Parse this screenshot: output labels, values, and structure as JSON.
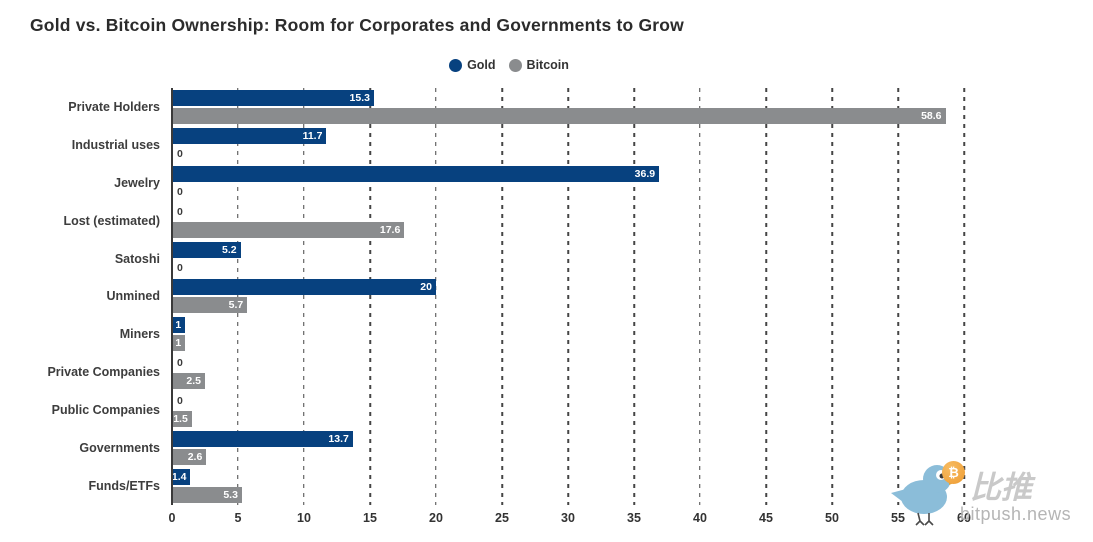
{
  "title": "Gold vs. Bitcoin Ownership: Room for Corporates and Governments to Grow",
  "legend": {
    "items": [
      {
        "label": "Gold",
        "color": "#07417f"
      },
      {
        "label": "Bitcoin",
        "color": "#8a8c8e"
      }
    ]
  },
  "watermark": {
    "brand_cn": "比推",
    "brand_site": "bitpush.news",
    "coin_symbol": "₿"
  },
  "colors": {
    "gold_bar": "#07417f",
    "bitcoin_bar": "#8a8c8e",
    "grid": "#454545",
    "axis": "#3a3a3a",
    "text": "#3d3d3d",
    "inside_label": "#ffffff"
  },
  "chart_data": {
    "type": "bar",
    "orientation": "horizontal",
    "title": "Gold vs. Bitcoin Ownership: Room for Corporates and Governments to Grow",
    "categories": [
      "Private Holders",
      "Industrial uses",
      "Jewelry",
      "Lost (estimated)",
      "Satoshi",
      "Unmined",
      "Miners",
      "Private Companies",
      "Public Companies",
      "Governments",
      "Funds/ETFs"
    ],
    "series": [
      {
        "name": "Gold",
        "color": "#07417f",
        "values": [
          15.3,
          11.7,
          36.9,
          0,
          5.2,
          20,
          1,
          0,
          0,
          13.7,
          1.4
        ],
        "labels": [
          "15.3",
          "11.7",
          "36.9",
          "0",
          "5.2",
          "20",
          "1",
          "0",
          "0",
          "13.7",
          "1.4"
        ]
      },
      {
        "name": "Bitcoin",
        "color": "#8a8c8e",
        "values": [
          58.6,
          0,
          0,
          17.6,
          0,
          5.7,
          1,
          2.5,
          1.5,
          2.6,
          5.3
        ],
        "labels": [
          "58.6",
          "0",
          "0",
          "17.6",
          "0",
          "5.7",
          "1",
          "2.5",
          "1.5",
          "2.6",
          "5.3"
        ]
      }
    ],
    "xlim": [
      0,
      60
    ],
    "xticks": [
      0,
      5,
      10,
      15,
      20,
      25,
      30,
      35,
      40,
      45,
      50,
      55,
      60
    ],
    "xlabel": "",
    "ylabel": "",
    "grid": "vertical-dashed",
    "legend_position": "top-center",
    "value_label_style": "positive values white inside bar end; zero values dark outside axis"
  }
}
